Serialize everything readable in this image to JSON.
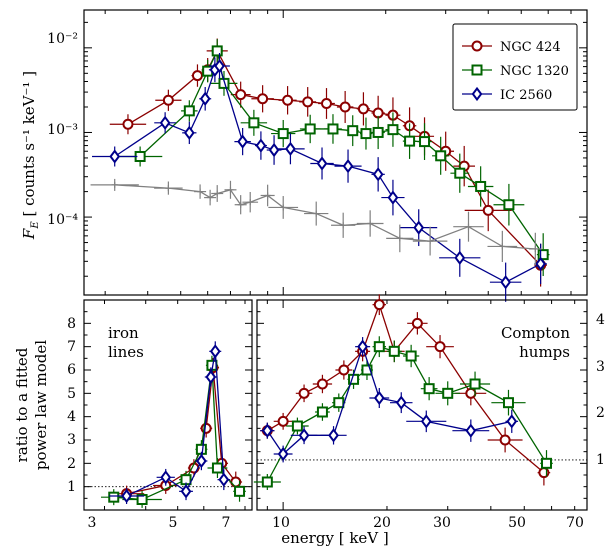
{
  "colors": {
    "ngc424": "#8b0000",
    "ngc1320": "#006400",
    "ic2560": "#00008b",
    "grey": "#808080"
  },
  "top": {
    "ylabel_var": "F",
    "ylabel_sub": "E",
    "ylabel_unit": "[ counts s⁻¹ keV⁻¹ ]",
    "ytick_labels": [
      "10⁻²",
      "10⁻³",
      "10⁻⁴"
    ],
    "legend": [
      "NGC 424",
      "NGC 1320",
      "IC 2560"
    ]
  },
  "bottom": {
    "ylabel_line1": "ratio to a fitted",
    "ylabel_line2": "power law model",
    "xlabel": "energy [ keV ]",
    "left_note_line1": "iron",
    "left_note_line2": "lines",
    "right_note_line1": "Compton",
    "right_note_line2": "humps",
    "left_ytick_labels": [
      "1",
      "2",
      "3",
      "4",
      "5",
      "6",
      "7",
      "8"
    ],
    "right_ytick_labels": [
      "1",
      "2",
      "3",
      "4"
    ],
    "left_xtick_labels": [
      "3",
      "5",
      "7"
    ],
    "right_xtick_labels": [
      "10",
      "20",
      "30",
      "50",
      "70"
    ]
  },
  "chart_data": [
    {
      "type": "scatter",
      "xscale": "log",
      "yscale": "log",
      "xlim": [
        2.6,
        78
      ],
      "ylim": [
        1.2e-05,
        0.028
      ],
      "ylabel": "F_E [ counts s⁻¹ keV⁻¹ ]",
      "legend_position": "top-right",
      "series": [
        {
          "name": "NGC 424",
          "marker": "circle",
          "x": [
            3.5,
            4.6,
            5.6,
            6.0,
            6.4,
            7.5,
            8.7,
            10.3,
            11.8,
            13.4,
            15.2,
            17.2,
            19.0,
            21.0,
            23.5,
            26.0,
            30.0,
            34.0,
            40.0,
            57.0
          ],
          "y": [
            0.00125,
            0.0024,
            0.0047,
            0.0055,
            0.0092,
            0.0028,
            0.0025,
            0.0024,
            0.0023,
            0.0022,
            0.002,
            0.0019,
            0.0017,
            0.0016,
            0.0012,
            0.0009,
            0.0006,
            0.0004,
            0.00012,
            2.7e-05
          ]
        },
        {
          "name": "NGC 1320",
          "marker": "square",
          "x": [
            3.8,
            5.3,
            6.0,
            6.4,
            6.7,
            8.2,
            10.0,
            12.0,
            14.0,
            16.0,
            17.5,
            19.0,
            21.0,
            23.5,
            26.0,
            29.0,
            33.0,
            38.0,
            46.0,
            58.0
          ],
          "y": [
            0.00052,
            0.0018,
            0.0053,
            0.0092,
            0.0038,
            0.0013,
            0.00097,
            0.0011,
            0.0011,
            0.00105,
            0.00097,
            0.001,
            0.00108,
            0.00079,
            0.00078,
            0.00053,
            0.00033,
            0.00023,
            0.00014,
            3.6e-05
          ]
        },
        {
          "name": "IC 2560",
          "marker": "diamond",
          "x": [
            3.2,
            4.5,
            5.3,
            5.9,
            6.3,
            6.5,
            7.6,
            8.6,
            9.4,
            10.5,
            13.0,
            15.5,
            19.0,
            21.0,
            25.0,
            33.0,
            45.0,
            57.0
          ],
          "y": [
            0.00052,
            0.0013,
            0.00099,
            0.0025,
            0.0055,
            0.0061,
            0.00078,
            0.0007,
            0.00062,
            0.00064,
            0.00043,
            0.0004,
            0.00032,
            0.00017,
            7.5e-05,
            3.3e-05,
            1.7e-05,
            2.8e-05
          ]
        },
        {
          "name": "",
          "marker": "plus",
          "x": [
            3.2,
            4.6,
            5.7,
            6.1,
            6.4,
            7.0,
            7.5,
            8.0,
            9.0,
            10.0,
            12.5,
            15.0,
            18.0,
            22.0,
            27.0,
            35.0,
            44.0,
            55.0
          ],
          "y": [
            0.00024,
            0.00022,
            0.0002,
            0.00017,
            0.00019,
            0.00021,
            0.00014,
            0.00015,
            0.00018,
            0.00013,
            0.00011,
            8e-05,
            8.4e-05,
            5.6e-05,
            5.2e-05,
            7.7e-05,
            4.5e-05,
            4.2e-05
          ]
        }
      ]
    },
    {
      "type": "scatter",
      "xscale": "log",
      "xlim": [
        2.6,
        8.4
      ],
      "ylim": [
        0,
        9
      ],
      "annotation": "iron lines",
      "series": [
        {
          "name": "NGC 424",
          "marker": "circle",
          "x": [
            3.5,
            4.6,
            5.6,
            6.1,
            6.4,
            6.8,
            7.5
          ],
          "y": [
            0.7,
            1.05,
            1.8,
            3.5,
            6.1,
            2.0,
            1.2
          ]
        },
        {
          "name": "NGC 1320",
          "marker": "square",
          "x": [
            3.2,
            3.9,
            5.3,
            5.9,
            6.35,
            6.6,
            7.7
          ],
          "y": [
            0.55,
            0.45,
            1.3,
            2.6,
            6.2,
            1.8,
            0.8
          ]
        },
        {
          "name": "IC 2560",
          "marker": "diamond",
          "x": [
            3.5,
            4.6,
            5.3,
            5.9,
            6.3,
            6.5,
            6.9
          ],
          "y": [
            0.6,
            1.4,
            0.8,
            2.1,
            5.7,
            6.8,
            1.3
          ]
        }
      ]
    },
    {
      "type": "scatter",
      "xscale": "log",
      "xlim": [
        8.4,
        76
      ],
      "ylim": [
        0,
        4.5
      ],
      "annotation": "Compton humps",
      "series": [
        {
          "name": "NGC 424",
          "marker": "circle",
          "x": [
            9.0,
            10.0,
            11.5,
            13.0,
            15.0,
            17.0,
            19.0,
            21.0,
            24.5,
            28.5,
            35.0,
            44.0,
            57.0
          ],
          "y": [
            1.7,
            1.9,
            2.5,
            2.7,
            3.0,
            3.4,
            4.4,
            3.4,
            4.0,
            3.5,
            2.5,
            1.5,
            0.8
          ]
        },
        {
          "name": "NGC 1320",
          "marker": "square",
          "x": [
            9.0,
            11.0,
            13.0,
            14.5,
            16.0,
            17.5,
            19.0,
            21.0,
            23.5,
            26.5,
            30.0,
            36.0,
            45.0,
            58.0
          ],
          "y": [
            0.6,
            1.8,
            2.1,
            2.3,
            2.8,
            3.0,
            3.5,
            3.4,
            3.3,
            2.6,
            2.5,
            2.7,
            2.3,
            1.0
          ]
        },
        {
          "name": "IC 2560",
          "marker": "diamond",
          "x": [
            9.0,
            10.0,
            11.5,
            14.0,
            17.0,
            19.0,
            22.0,
            26.0,
            35.0,
            46.0
          ],
          "y": [
            1.7,
            1.2,
            1.6,
            1.6,
            3.5,
            2.4,
            2.3,
            1.9,
            1.7,
            1.9
          ]
        }
      ]
    }
  ]
}
